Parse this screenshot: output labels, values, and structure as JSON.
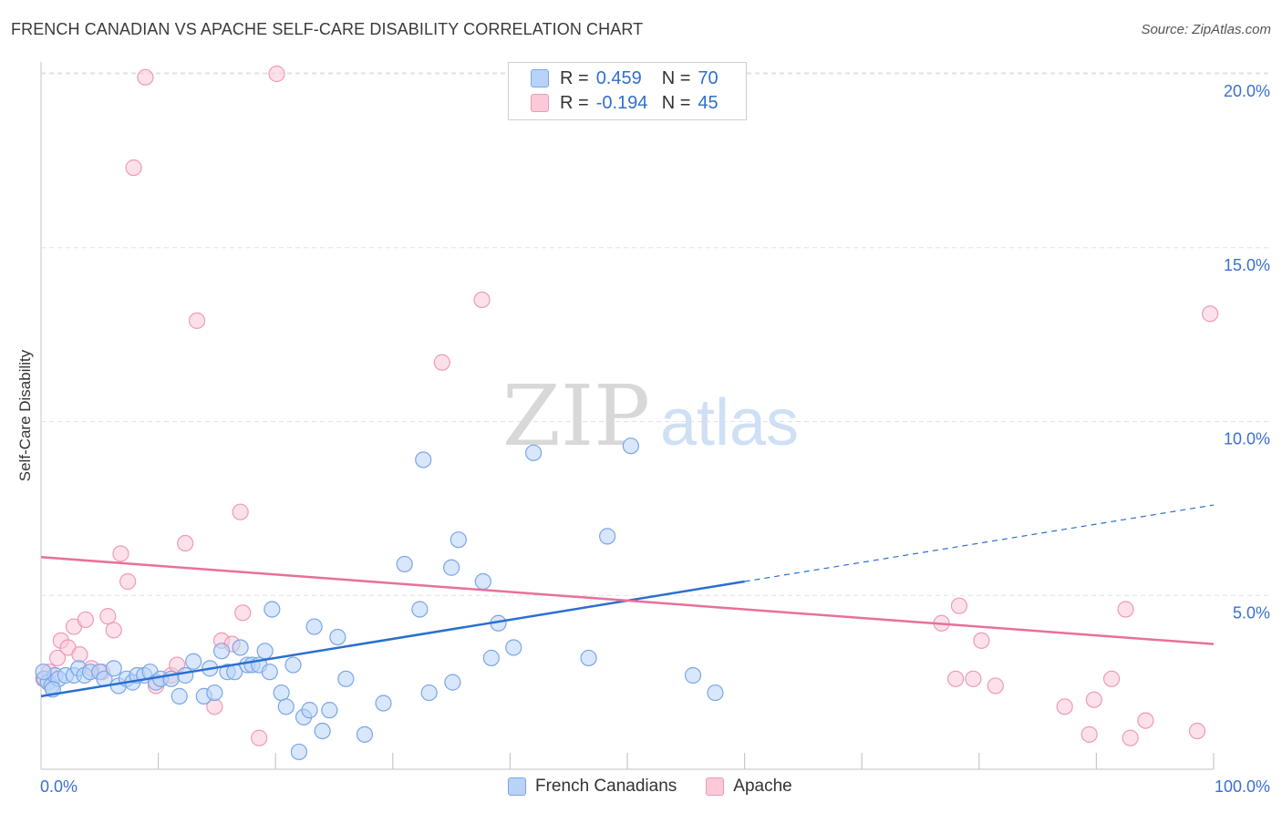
{
  "title": "FRENCH CANADIAN VS APACHE SELF-CARE DISABILITY CORRELATION CHART",
  "source": "Source: ZipAtlas.com",
  "legend_top": {
    "series1": {
      "r_label": "R =",
      "r_value": "0.459",
      "n_label": "N =",
      "n_value": "70"
    },
    "series2": {
      "r_label": "R =",
      "r_value": "-0.194",
      "n_label": "N =",
      "n_value": "45"
    }
  },
  "legend_bottom": {
    "series1": "French Canadians",
    "series2": "Apache"
  },
  "colors": {
    "blue_fill": "#b8d3f7",
    "blue_stroke": "#7aa6e6",
    "blue_line": "#2a6fd0",
    "pink_fill": "#fbc9d8",
    "pink_stroke": "#ee9ab5",
    "pink_line": "#e8709a",
    "axis_text": "#3a6fd0"
  },
  "watermark": {
    "zip": "ZIP",
    "atlas": "atlas"
  },
  "chart_data": {
    "type": "scatter",
    "title": "FRENCH CANADIAN VS APACHE SELF-CARE DISABILITY CORRELATION CHART",
    "xlabel": "",
    "ylabel": "Self-Care Disability",
    "xlim": [
      0,
      100
    ],
    "ylim": [
      0,
      21
    ],
    "x_tick_labels": [
      {
        "v": 0,
        "label": "0.0%"
      },
      {
        "v": 100,
        "label": "100.0%"
      }
    ],
    "x_minor_ticks": [
      10,
      20,
      30,
      40,
      50,
      60,
      70,
      80,
      90,
      100
    ],
    "y_ticks": [
      {
        "v": 5,
        "label": "5.0%"
      },
      {
        "v": 10,
        "label": "10.0%"
      },
      {
        "v": 15,
        "label": "15.0%"
      },
      {
        "v": 20,
        "label": "20.0%"
      }
    ],
    "grid": true,
    "series": [
      {
        "name": "French Canadians",
        "points": [
          [
            0.3,
            2.6
          ],
          [
            0.6,
            2.5
          ],
          [
            0.9,
            2.4
          ],
          [
            1.2,
            2.7
          ],
          [
            1.5,
            2.6
          ],
          [
            2.1,
            2.7
          ],
          [
            2.8,
            2.7
          ],
          [
            3.2,
            2.9
          ],
          [
            3.7,
            2.7
          ],
          [
            4.2,
            2.8
          ],
          [
            5.0,
            2.8
          ],
          [
            5.4,
            2.6
          ],
          [
            6.2,
            2.9
          ],
          [
            6.6,
            2.4
          ],
          [
            7.3,
            2.6
          ],
          [
            7.8,
            2.5
          ],
          [
            8.2,
            2.7
          ],
          [
            8.8,
            2.7
          ],
          [
            9.3,
            2.8
          ],
          [
            9.8,
            2.5
          ],
          [
            10.2,
            2.6
          ],
          [
            11.1,
            2.6
          ],
          [
            11.8,
            2.1
          ],
          [
            12.3,
            2.7
          ],
          [
            13.0,
            3.1
          ],
          [
            13.9,
            2.1
          ],
          [
            14.4,
            2.9
          ],
          [
            14.8,
            2.2
          ],
          [
            15.4,
            3.4
          ],
          [
            15.9,
            2.8
          ],
          [
            16.5,
            2.8
          ],
          [
            17.0,
            3.5
          ],
          [
            17.6,
            3.0
          ],
          [
            18.0,
            3.0
          ],
          [
            18.6,
            3.0
          ],
          [
            19.1,
            3.4
          ],
          [
            19.5,
            2.8
          ],
          [
            19.7,
            4.6
          ],
          [
            20.5,
            2.2
          ],
          [
            20.9,
            1.8
          ],
          [
            21.5,
            3.0
          ],
          [
            22.0,
            0.5
          ],
          [
            22.4,
            1.5
          ],
          [
            22.9,
            1.7
          ],
          [
            23.3,
            4.1
          ],
          [
            24.0,
            1.1
          ],
          [
            24.6,
            1.7
          ],
          [
            25.3,
            3.8
          ],
          [
            26.0,
            2.6
          ],
          [
            27.6,
            1.0
          ],
          [
            29.2,
            1.9
          ],
          [
            31.0,
            5.9
          ],
          [
            32.3,
            4.6
          ],
          [
            32.6,
            8.9
          ],
          [
            33.1,
            2.2
          ],
          [
            35.0,
            5.8
          ],
          [
            35.1,
            2.5
          ],
          [
            35.6,
            6.6
          ],
          [
            37.7,
            5.4
          ],
          [
            38.4,
            3.2
          ],
          [
            39.0,
            4.2
          ],
          [
            40.3,
            3.5
          ],
          [
            42.0,
            9.1
          ],
          [
            46.7,
            3.2
          ],
          [
            48.3,
            6.7
          ],
          [
            50.3,
            9.3
          ],
          [
            55.6,
            2.7
          ],
          [
            57.5,
            2.2
          ],
          [
            1.0,
            2.3
          ],
          [
            0.2,
            2.8
          ]
        ]
      },
      {
        "name": "Apache",
        "points": [
          [
            0.2,
            2.6
          ],
          [
            0.7,
            2.8
          ],
          [
            1.4,
            3.2
          ],
          [
            1.7,
            3.7
          ],
          [
            2.3,
            3.5
          ],
          [
            2.8,
            4.1
          ],
          [
            3.3,
            3.3
          ],
          [
            3.8,
            4.3
          ],
          [
            4.3,
            2.9
          ],
          [
            5.2,
            2.8
          ],
          [
            5.7,
            4.4
          ],
          [
            6.2,
            4.0
          ],
          [
            6.8,
            6.2
          ],
          [
            7.4,
            5.4
          ],
          [
            7.9,
            17.3
          ],
          [
            8.9,
            19.9
          ],
          [
            9.8,
            2.4
          ],
          [
            11.1,
            2.7
          ],
          [
            11.6,
            3.0
          ],
          [
            12.3,
            6.5
          ],
          [
            13.3,
            12.9
          ],
          [
            14.8,
            1.8
          ],
          [
            15.4,
            3.7
          ],
          [
            16.3,
            3.6
          ],
          [
            17.0,
            7.4
          ],
          [
            17.2,
            4.5
          ],
          [
            18.6,
            0.9
          ],
          [
            20.1,
            20.0
          ],
          [
            34.2,
            11.7
          ],
          [
            37.6,
            13.5
          ],
          [
            76.8,
            4.2
          ],
          [
            78.0,
            2.6
          ],
          [
            78.3,
            4.7
          ],
          [
            79.5,
            2.6
          ],
          [
            80.2,
            3.7
          ],
          [
            81.4,
            2.4
          ],
          [
            87.3,
            1.8
          ],
          [
            89.4,
            1.0
          ],
          [
            89.8,
            2.0
          ],
          [
            91.3,
            2.6
          ],
          [
            92.5,
            4.6
          ],
          [
            92.9,
            0.9
          ],
          [
            94.2,
            1.4
          ],
          [
            98.6,
            1.1
          ],
          [
            99.7,
            13.1
          ]
        ]
      }
    ],
    "trendlines": [
      {
        "series": "French Canadians",
        "x0": 0,
        "y0": 2.1,
        "x1": 60,
        "y1": 5.4,
        "dashed_to_x": 100,
        "dashed_to_y": 7.6
      },
      {
        "series": "Apache",
        "x0": 0,
        "y0": 6.1,
        "x1": 100,
        "y1": 3.6
      }
    ]
  }
}
